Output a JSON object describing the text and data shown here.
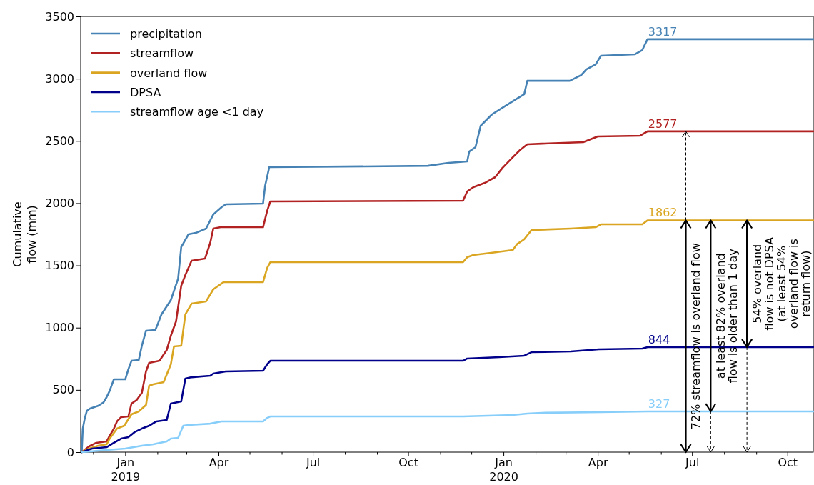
{
  "chart_data": {
    "type": "line",
    "ylabel": "Cumulative flow (mm)",
    "xlim": [
      "2018-11-19",
      "2020-10-26"
    ],
    "ylim": [
      0,
      3500
    ],
    "yticks": [
      0,
      500,
      1000,
      1500,
      2000,
      2500,
      3000,
      3500
    ],
    "xticks": [
      {
        "value": "2018-12-01",
        "label": null
      },
      {
        "value": "2019-01-01",
        "label": "Jan\n2019"
      },
      {
        "value": "2019-02-01",
        "label": null
      },
      {
        "value": "2019-03-01",
        "label": null
      },
      {
        "value": "2019-04-01",
        "label": "Apr"
      },
      {
        "value": "2019-05-01",
        "label": null
      },
      {
        "value": "2019-06-01",
        "label": null
      },
      {
        "value": "2019-07-01",
        "label": "Jul"
      },
      {
        "value": "2019-08-01",
        "label": null
      },
      {
        "value": "2019-09-01",
        "label": null
      },
      {
        "value": "2019-10-01",
        "label": "Oct"
      },
      {
        "value": "2019-11-01",
        "label": null
      },
      {
        "value": "2019-12-01",
        "label": null
      },
      {
        "value": "2020-01-01",
        "label": "Jan\n2020"
      },
      {
        "value": "2020-02-01",
        "label": null
      },
      {
        "value": "2020-03-01",
        "label": null
      },
      {
        "value": "2020-04-01",
        "label": "Apr"
      },
      {
        "value": "2020-05-01",
        "label": null
      },
      {
        "value": "2020-06-01",
        "label": null
      },
      {
        "value": "2020-07-01",
        "label": "Jul"
      },
      {
        "value": "2020-08-01",
        "label": null
      },
      {
        "value": "2020-09-01",
        "label": null
      },
      {
        "value": "2020-10-01",
        "label": "Oct"
      }
    ],
    "grid": false,
    "legend": "top left",
    "line_style": "solid",
    "series": [
      {
        "name": "precipitation",
        "color": "#4682b4",
        "x": [
          "2018-11-20",
          "2018-11-21",
          "2018-11-23",
          "2018-11-25",
          "2018-11-28",
          "2018-12-06",
          "2018-12-11",
          "2018-12-14",
          "2018-12-17",
          "2018-12-21",
          "2019-01-01",
          "2019-01-04",
          "2019-01-07",
          "2019-01-14",
          "2019-01-17",
          "2019-01-21",
          "2019-01-30",
          "2019-02-01",
          "2019-02-05",
          "2019-02-14",
          "2019-02-21",
          "2019-02-24",
          "2019-03-03",
          "2019-03-10",
          "2019-03-20",
          "2019-03-27",
          "2019-04-04",
          "2019-04-08",
          "2019-05-14",
          "2019-05-16",
          "2019-05-20",
          "2019-10-20",
          "2019-11-09",
          "2019-11-27",
          "2019-11-29",
          "2019-12-05",
          "2019-12-10",
          "2019-12-21",
          "2020-01-03",
          "2020-01-14",
          "2020-01-21",
          "2020-01-24",
          "2020-03-05",
          "2020-03-16",
          "2020-03-21",
          "2020-03-30",
          "2020-04-04",
          "2020-05-07",
          "2020-05-14",
          "2020-05-19",
          "2020-10-26"
        ],
        "values": [
          0,
          190,
          275,
          333,
          350,
          373,
          400,
          442,
          494,
          585,
          585,
          666,
          734,
          740,
          855,
          975,
          981,
          1021,
          1107,
          1222,
          1394,
          1647,
          1750,
          1761,
          1796,
          1910,
          1968,
          1991,
          1997,
          2140,
          2289,
          2300,
          2324,
          2335,
          2415,
          2450,
          2622,
          2714,
          2782,
          2840,
          2875,
          2983,
          2983,
          3029,
          3075,
          3115,
          3184,
          3196,
          3230,
          3317,
          3317
        ],
        "value_labels": [
          null,
          null,
          null,
          null,
          null,
          null,
          null,
          null,
          null,
          null,
          null,
          null,
          null,
          null,
          null,
          null,
          null,
          null,
          null,
          null,
          null,
          null,
          null,
          null,
          null,
          null,
          null,
          null,
          null,
          null,
          null,
          null,
          null,
          null,
          null,
          null,
          null,
          null,
          null,
          null,
          null,
          null,
          null,
          null,
          null,
          null,
          null,
          null,
          null,
          "3317",
          null
        ]
      },
      {
        "name": "streamflow",
        "color": "#b22222",
        "x": [
          "2018-11-20",
          "2018-11-27",
          "2018-12-04",
          "2018-12-14",
          "2018-12-17",
          "2018-12-21",
          "2018-12-24",
          "2018-12-28",
          "2019-01-04",
          "2019-01-07",
          "2019-01-12",
          "2019-01-17",
          "2019-01-21",
          "2019-01-24",
          "2019-02-03",
          "2019-02-10",
          "2019-02-14",
          "2019-02-19",
          "2019-02-24",
          "2019-02-28",
          "2019-03-06",
          "2019-03-19",
          "2019-03-24",
          "2019-03-27",
          "2019-04-03",
          "2019-05-14",
          "2019-05-18",
          "2019-05-21",
          "2019-11-23",
          "2019-11-27",
          "2019-12-03",
          "2019-12-14",
          "2019-12-24",
          "2019-12-31",
          "2020-01-10",
          "2020-01-17",
          "2020-01-24",
          "2020-02-07",
          "2020-03-18",
          "2020-03-25",
          "2020-04-01",
          "2020-05-12",
          "2020-05-19",
          "2020-10-26"
        ],
        "values": [
          0,
          46,
          75,
          86,
          132,
          189,
          247,
          281,
          287,
          390,
          419,
          476,
          648,
          717,
          734,
          820,
          935,
          1050,
          1337,
          1423,
          1538,
          1555,
          1681,
          1796,
          1807,
          1807,
          1939,
          2014,
          2020,
          2094,
          2129,
          2163,
          2209,
          2283,
          2369,
          2427,
          2473,
          2478,
          2490,
          2513,
          2536,
          2542,
          2577,
          2577
        ],
        "value_labels": [
          null,
          null,
          null,
          null,
          null,
          null,
          null,
          null,
          null,
          null,
          null,
          null,
          null,
          null,
          null,
          null,
          null,
          null,
          null,
          null,
          null,
          null,
          null,
          null,
          null,
          null,
          null,
          null,
          null,
          null,
          null,
          null,
          null,
          null,
          null,
          null,
          null,
          null,
          null,
          null,
          null,
          null,
          "2577",
          null
        ]
      },
      {
        "name": "overland flow",
        "color": "#daa520",
        "x": [
          "2018-11-20",
          "2018-11-27",
          "2018-12-06",
          "2018-12-14",
          "2018-12-17",
          "2018-12-24",
          "2018-12-31",
          "2019-01-07",
          "2019-01-14",
          "2019-01-21",
          "2019-01-24",
          "2019-01-28",
          "2019-02-07",
          "2019-02-14",
          "2019-02-17",
          "2019-02-24",
          "2019-02-28",
          "2019-03-06",
          "2019-03-20",
          "2019-03-27",
          "2019-04-06",
          "2019-05-14",
          "2019-05-18",
          "2019-05-21",
          "2019-11-23",
          "2019-11-27",
          "2019-12-03",
          "2019-12-20",
          "2020-01-10",
          "2020-01-14",
          "2020-01-21",
          "2020-01-28",
          "2020-03-06",
          "2020-03-30",
          "2020-04-04",
          "2020-05-14",
          "2020-05-19",
          "2020-10-26"
        ],
        "values": [
          0,
          29,
          52,
          63,
          109,
          189,
          212,
          304,
          327,
          379,
          534,
          545,
          562,
          706,
          849,
          855,
          1107,
          1193,
          1211,
          1308,
          1366,
          1366,
          1480,
          1526,
          1526,
          1566,
          1584,
          1601,
          1624,
          1670,
          1710,
          1784,
          1796,
          1807,
          1830,
          1830,
          1862,
          1862
        ],
        "value_labels": [
          null,
          null,
          null,
          null,
          null,
          null,
          null,
          null,
          null,
          null,
          null,
          null,
          null,
          null,
          null,
          null,
          null,
          null,
          null,
          null,
          null,
          null,
          null,
          null,
          null,
          null,
          null,
          null,
          null,
          null,
          null,
          null,
          null,
          null,
          null,
          null,
          "1862",
          null
        ]
      },
      {
        "name": "DPSA",
        "color": "#00008b",
        "x": [
          "2018-11-20",
          "2018-11-30",
          "2018-12-14",
          "2018-12-21",
          "2018-12-28",
          "2019-01-04",
          "2019-01-10",
          "2019-01-17",
          "2019-01-24",
          "2019-01-31",
          "2019-02-10",
          "2019-02-14",
          "2019-02-24",
          "2019-02-28",
          "2019-03-06",
          "2019-03-24",
          "2019-03-27",
          "2019-04-08",
          "2019-05-14",
          "2019-05-18",
          "2019-05-21",
          "2019-11-23",
          "2019-11-27",
          "2019-12-28",
          "2020-01-21",
          "2020-01-28",
          "2020-03-06",
          "2020-04-02",
          "2020-05-14",
          "2020-05-19",
          "2020-10-26"
        ],
        "values": [
          0,
          29,
          40,
          75,
          109,
          121,
          161,
          189,
          212,
          247,
          258,
          390,
          407,
          591,
          602,
          614,
          631,
          648,
          654,
          706,
          734,
          734,
          752,
          763,
          775,
          803,
          809,
          826,
          832,
          844,
          844
        ],
        "value_labels": [
          null,
          null,
          null,
          null,
          null,
          null,
          null,
          null,
          null,
          null,
          null,
          null,
          null,
          null,
          null,
          null,
          null,
          null,
          null,
          null,
          null,
          null,
          null,
          null,
          null,
          null,
          null,
          null,
          null,
          "844",
          null
        ]
      },
      {
        "name": "streamflow age <1 day",
        "color": "#87cefa",
        "x": [
          "2018-11-20",
          "2018-12-14",
          "2019-01-01",
          "2019-01-17",
          "2019-01-28",
          "2019-02-10",
          "2019-02-14",
          "2019-02-21",
          "2019-02-26",
          "2019-03-03",
          "2019-03-24",
          "2019-04-04",
          "2019-05-14",
          "2019-05-18",
          "2019-05-21",
          "2019-11-23",
          "2020-01-10",
          "2020-01-24",
          "2020-02-07",
          "2020-04-04",
          "2020-05-19",
          "2020-10-26"
        ],
        "values": [
          0,
          17,
          29,
          52,
          63,
          86,
          109,
          115,
          212,
          218,
          229,
          247,
          247,
          275,
          287,
          287,
          298,
          310,
          316,
          321,
          327,
          327
        ],
        "value_labels": [
          null,
          null,
          null,
          null,
          null,
          null,
          null,
          null,
          null,
          null,
          null,
          null,
          null,
          null,
          null,
          null,
          null,
          null,
          null,
          null,
          "327",
          null
        ]
      }
    ],
    "annotations": [
      {
        "text": "72% streamflow is overland flow",
        "x": "2020-06-25",
        "y": 1862
      },
      {
        "text": "at least 82% overland\nflow is older than 1 day",
        "x": "2020-07-19",
        "y": 1862
      },
      {
        "text": "54% overland\nflow is not DPSA\n(at least 54%\noverland flow is\nreturn flow)",
        "x": "2020-08-23",
        "y": 1862
      }
    ]
  }
}
